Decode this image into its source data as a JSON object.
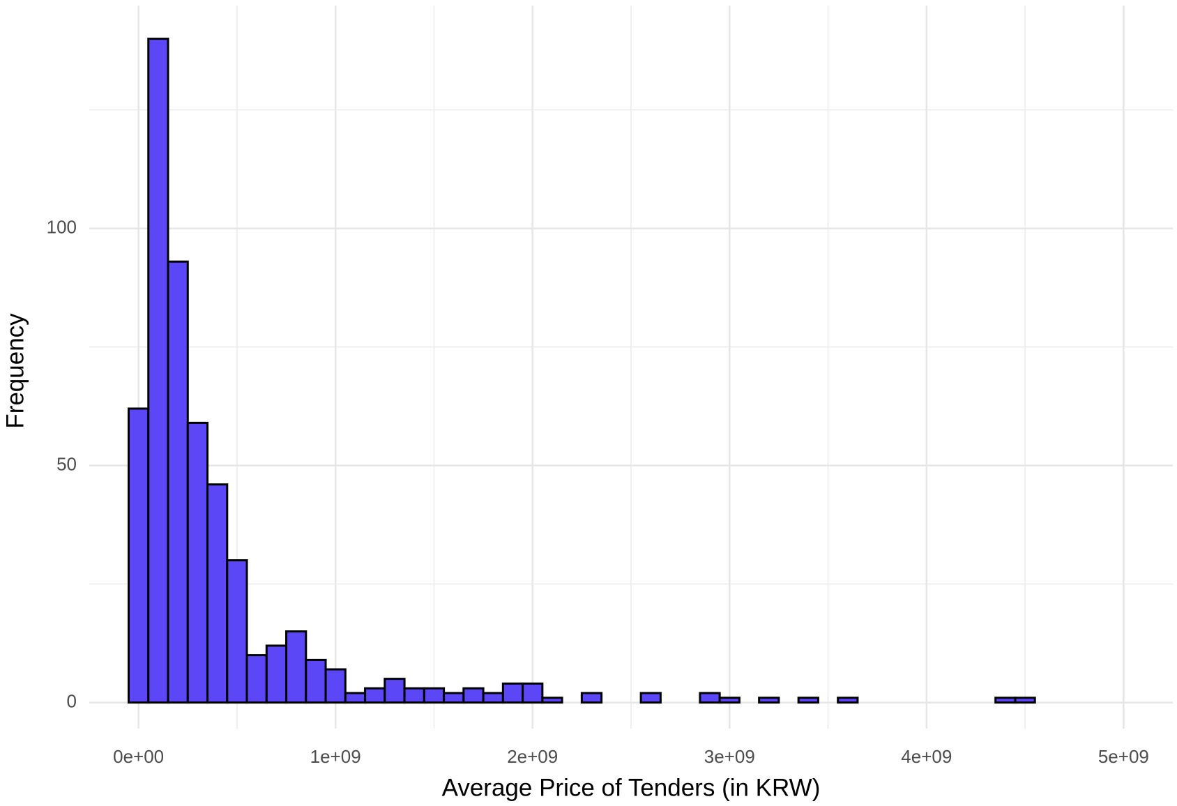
{
  "chart_data": {
    "type": "histogram",
    "x_label": "Average Price of Tenders (in KRW)",
    "y_label": "Frequency",
    "bins": [
      -50000000,
      50000000,
      150000000,
      250000000,
      350000000,
      450000000,
      550000000,
      650000000,
      750000000,
      850000000,
      950000000,
      1050000000,
      1150000000,
      1250000000,
      1350000000,
      1450000000,
      1550000000,
      1650000000,
      1750000000,
      1850000000,
      1950000000,
      2050000000,
      2150000000,
      2250000000,
      2350000000,
      2450000000,
      2550000000,
      2650000000,
      2750000000,
      2850000000,
      2950000000,
      3050000000,
      3150000000,
      3250000000,
      3350000000,
      3450000000,
      3550000000,
      3650000000,
      3750000000,
      3850000000,
      3950000000,
      4050000000,
      4150000000,
      4250000000,
      4350000000,
      4450000000,
      4550000000,
      4650000000,
      4750000000,
      4850000000,
      4950000000,
      5050000000,
      5150000000,
      5250000000
    ],
    "counts": [
      62,
      140,
      93,
      59,
      46,
      30,
      10,
      12,
      15,
      9,
      7,
      2,
      3,
      5,
      3,
      3,
      2,
      3,
      2,
      4,
      4,
      1,
      0,
      2,
      0,
      0,
      2,
      0,
      0,
      2,
      1,
      0,
      1,
      0,
      1,
      0,
      1,
      0,
      0,
      0,
      0,
      0,
      0,
      0,
      1,
      1,
      0,
      0,
      0,
      0,
      0,
      0,
      0
    ],
    "color": "#5b47f6",
    "edgecolor": "#000000",
    "xlim": [
      -250000000,
      5250000000
    ],
    "xticks": [
      {
        "value": 0,
        "label": "0e+00"
      },
      {
        "value": 1000000000,
        "label": "1e+09"
      },
      {
        "value": 2000000000,
        "label": "2e+09"
      },
      {
        "value": 3000000000,
        "label": "3e+09"
      },
      {
        "value": 4000000000,
        "label": "4e+09"
      },
      {
        "value": 5000000000,
        "label": "5e+09"
      }
    ],
    "xminor": [
      500000000,
      1500000000,
      2500000000,
      3500000000,
      4500000000
    ],
    "ylim": [
      -5.5,
      147
    ],
    "yticks": [
      0,
      50,
      100
    ],
    "yminor": [
      25,
      75,
      125
    ],
    "grid": true
  }
}
